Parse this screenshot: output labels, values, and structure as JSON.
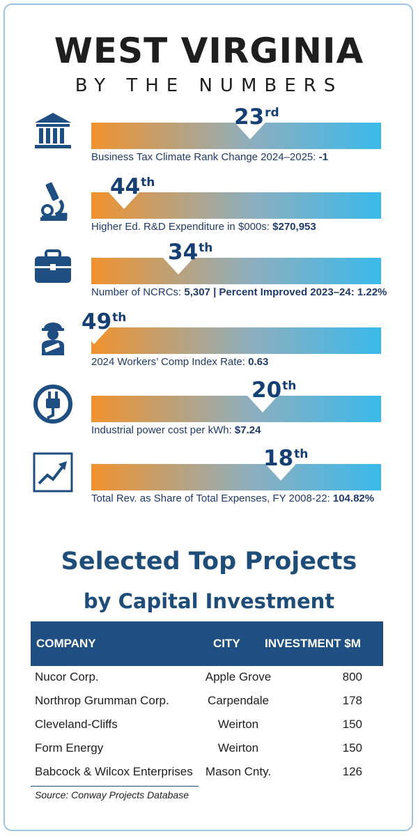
{
  "header": {
    "title": "WEST VIRGINIA",
    "subtitle": "BY THE NUMBERS"
  },
  "colors": {
    "bar_start": "#f0922e",
    "bar_end": "#3ab9ea",
    "navy": "#1f4f82",
    "frame": "#9dc4e6"
  },
  "metrics": [
    {
      "icon": "government-building-icon",
      "rank_num": "23",
      "rank_suffix": "rd",
      "caption_text": "Business Tax Climate Rank Change 2024–2025: ",
      "caption_value": "-1"
    },
    {
      "icon": "microscope-icon",
      "rank_num": "44",
      "rank_suffix": "th",
      "caption_text": "Higher Ed. R&D Expenditure in $000s: ",
      "caption_value": "$270,953"
    },
    {
      "icon": "briefcase-icon",
      "rank_num": "34",
      "rank_suffix": "th",
      "caption_text": "Number of NCRCs: ",
      "caption_value": "5,307 | Percent Improved 2023–24: 1.22%"
    },
    {
      "icon": "injured-worker-icon",
      "rank_num": "49",
      "rank_suffix": "th",
      "caption_text": "2024 Workers’ Comp Index Rate: ",
      "caption_value": "0.63"
    },
    {
      "icon": "power-plug-icon",
      "rank_num": "20",
      "rank_suffix": "th",
      "caption_text": "Industrial power cost per kWh: ",
      "caption_value": "$7.24"
    },
    {
      "icon": "trend-chart-icon",
      "rank_num": "18",
      "rank_suffix": "th",
      "caption_text": "Total Rev. as Share of Total Expenses, FY 2008-22: ",
      "caption_value": "104.82%"
    }
  ],
  "projects": {
    "heading": "Selected Top Projects",
    "subheading": "by Capital Investment",
    "columns": [
      "COMPANY",
      "CITY",
      "INVESTMENT $M"
    ],
    "rows": [
      {
        "company": "Nucor Corp.",
        "city": "Apple Grove",
        "investment": "800"
      },
      {
        "company": "Northrop Grumman Corp.",
        "city": "Carpendale",
        "investment": "178"
      },
      {
        "company": "Cleveland-Cliffs",
        "city": "Weirton",
        "investment": "150"
      },
      {
        "company": "Form Energy",
        "city": "Weirton",
        "investment": "150"
      },
      {
        "company": "Babcock & Wilcox Enterprises",
        "city": "Mason Cnty.",
        "investment": "126"
      }
    ],
    "source": "Source: Conway Projects Database"
  }
}
